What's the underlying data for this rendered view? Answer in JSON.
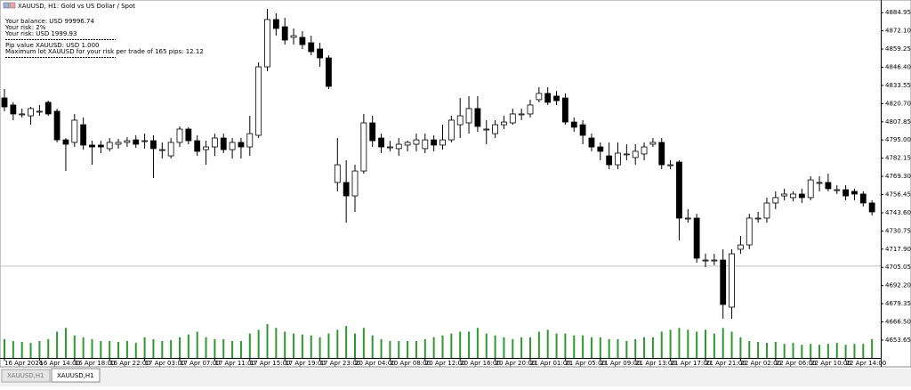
{
  "chart_data": {
    "type": "candlestick",
    "title": "XAUUSD, H1:  Gold vs US Dollar / Spot",
    "annotations": [
      "Your balance: USD 99996.74",
      "Your risk: 2%",
      "Your risk: USD 1999.93",
      "Pip value XAUUSD: USD 1.000",
      "Maximum lot XAUUSD for your risk per trade of 165 pips: 12.12"
    ],
    "categories": [
      "16 Apr 2026",
      null,
      null,
      null,
      "16 Apr 14:00",
      null,
      null,
      null,
      "16 Apr 18:00",
      null,
      null,
      null,
      "16 Apr 22:00",
      null,
      null,
      null,
      "17 Apr 03:00",
      null,
      null,
      null,
      "17 Apr 07:00",
      null,
      null,
      null,
      "17 Apr 11:00",
      null,
      null,
      null,
      "17 Apr 15:00",
      null,
      null,
      null,
      "17 Apr 19:00",
      null,
      null,
      null,
      "17 Apr 23:00",
      null,
      null,
      null,
      "20 Apr 04:00",
      null,
      null,
      null,
      "20 Apr 08:00",
      null,
      null,
      null,
      "20 Apr 12:00",
      null,
      null,
      null,
      "20 Apr 16:00",
      null,
      null,
      null,
      "20 Apr 20:00",
      null,
      null,
      null,
      "21 Apr 01:00",
      null,
      null,
      null,
      "21 Apr 05:00",
      null,
      null,
      null,
      "21 Apr 09:00",
      null,
      null,
      null,
      "21 Apr 13:00",
      null,
      null,
      null,
      "21 Apr 17:00",
      null,
      null,
      null,
      "21 Apr 21:00",
      null,
      null,
      null,
      "22 Apr 02:00",
      null,
      null,
      null,
      "22 Apr 06:00",
      null,
      null,
      null,
      "22 Apr 10:00",
      null,
      null,
      null,
      "22 Apr 14:00",
      null,
      null,
      null
    ],
    "open": [
      4824.7,
      4819.7,
      4813.4,
      4812.1,
      4815.3,
      4821.6,
      4815.3,
      4795.1,
      4793.3,
      4805.8,
      4791.4,
      4791.4,
      4788.9,
      4792.0,
      4793.3,
      4795.1,
      4794.5,
      4794.5,
      4788.2,
      4783.8,
      4793.3,
      4802.7,
      4794.5,
      4788.2,
      4790.1,
      4796.4,
      4788.2,
      4793.3,
      4790.1,
      4798.3,
      4846.7,
      4880.1,
      4875.0,
      4867.5,
      4867.5,
      4863.7,
      4859.3,
      4853.0,
      4765.0,
      4765.0,
      4755.5,
      4773.1,
      4807.1,
      4796.4,
      4790.1,
      4788.9,
      4791.4,
      4792.0,
      4788.9,
      4795.1,
      4791.4,
      4795.1,
      4805.8,
      4807.1,
      4817.2,
      4802.7,
      4799.5,
      4805.8,
      4807.1,
      4813.4,
      4813.4,
      4823.5,
      4827.9,
      4826.0,
      4824.7,
      4807.7,
      4805.8,
      4796.4,
      4790.1,
      4783.8,
      4777.5,
      4785.1,
      4782.6,
      4785.1,
      4792.0,
      4793.3,
      4777.5,
      4779.4,
      4739.8,
      4739.8,
      4710.2,
      4710.2,
      4710.2,
      4676.9,
      4717.8,
      4720.9,
      4739.8,
      4739.8,
      4750.5,
      4755.5,
      4754.3,
      4756.8,
      4754.3,
      4765.0,
      4765.0,
      4759.9,
      4759.9,
      4758.7,
      4756.8,
      4750.5
    ],
    "high": [
      4831.0,
      4821.6,
      4817.2,
      4818.4,
      4819.7,
      4822.8,
      4817.2,
      4796.4,
      4813.4,
      4810.9,
      4794.5,
      4794.5,
      4796.4,
      4795.8,
      4797.0,
      4798.3,
      4799.5,
      4798.3,
      4793.3,
      4796.4,
      4804.6,
      4804.0,
      4798.3,
      4794.5,
      4799.5,
      4799.5,
      4796.4,
      4796.4,
      4812.1,
      4849.9,
      4887.6,
      4884.5,
      4881.3,
      4873.8,
      4871.9,
      4868.7,
      4863.7,
      4854.9,
      4796.4,
      4780.7,
      4777.5,
      4813.4,
      4812.1,
      4799.5,
      4794.5,
      4796.4,
      4794.5,
      4799.5,
      4799.5,
      4798.3,
      4805.8,
      4812.1,
      4824.7,
      4826.0,
      4826.0,
      4809.0,
      4809.0,
      4812.1,
      4817.2,
      4817.2,
      4823.5,
      4832.3,
      4832.3,
      4829.7,
      4827.9,
      4810.9,
      4809.0,
      4799.5,
      4793.3,
      4793.3,
      4793.3,
      4792.0,
      4792.0,
      4793.3,
      4796.4,
      4796.4,
      4780.7,
      4780.7,
      4746.1,
      4742.9,
      4714.6,
      4714.6,
      4717.8,
      4717.8,
      4727.2,
      4742.9,
      4744.2,
      4754.3,
      4758.7,
      4760.6,
      4758.7,
      4760.6,
      4769.4,
      4769.4,
      4771.2,
      4763.1,
      4763.1,
      4760.6,
      4758.7,
      4752.4
    ],
    "low": [
      4815.3,
      4809.0,
      4810.9,
      4805.8,
      4812.1,
      4812.1,
      4793.3,
      4773.1,
      4790.1,
      4788.2,
      4777.5,
      4785.7,
      4787.0,
      4788.9,
      4790.1,
      4789.5,
      4788.9,
      4768.1,
      4781.9,
      4781.9,
      4790.1,
      4792.0,
      4783.8,
      4777.5,
      4783.8,
      4785.7,
      4781.9,
      4781.9,
      4783.8,
      4796.4,
      4843.6,
      4868.7,
      4862.4,
      4862.4,
      4859.3,
      4854.9,
      4846.7,
      4831.0,
      4758.7,
      4736.6,
      4744.2,
      4771.2,
      4790.1,
      4785.7,
      4787.0,
      4783.8,
      4787.0,
      4787.0,
      4785.7,
      4787.0,
      4788.2,
      4793.3,
      4796.4,
      4799.5,
      4800.8,
      4792.0,
      4796.4,
      4802.7,
      4805.8,
      4809.0,
      4810.9,
      4821.6,
      4819.7,
      4819.7,
      4805.8,
      4800.8,
      4792.0,
      4787.0,
      4780.7,
      4774.4,
      4774.4,
      4780.7,
      4777.5,
      4780.7,
      4790.1,
      4774.4,
      4774.4,
      4724.1,
      4736.6,
      4708.3,
      4705.2,
      4706.5,
      4668.7,
      4668.7,
      4714.6,
      4717.8,
      4736.6,
      4736.6,
      4746.1,
      4752.4,
      4751.7,
      4750.5,
      4752.4,
      4758.7,
      4758.7,
      4756.8,
      4752.4,
      4752.4,
      4748.0,
      4741.7
    ],
    "close": [
      4818.4,
      4813.4,
      4813.4,
      4817.2,
      4815.3,
      4813.4,
      4795.1,
      4792.0,
      4809.0,
      4791.4,
      4790.1,
      4790.1,
      4793.3,
      4793.3,
      4794.5,
      4792.0,
      4794.5,
      4788.9,
      4788.2,
      4793.3,
      4802.7,
      4794.5,
      4787.0,
      4790.1,
      4796.4,
      4788.2,
      4793.3,
      4790.1,
      4799.5,
      4846.7,
      4880.1,
      4873.8,
      4865.6,
      4868.7,
      4862.4,
      4857.4,
      4853.0,
      4832.9,
      4777.5,
      4755.5,
      4773.1,
      4807.1,
      4794.5,
      4790.1,
      4790.1,
      4792.0,
      4793.3,
      4795.1,
      4795.1,
      4791.4,
      4795.1,
      4809.0,
      4812.1,
      4817.2,
      4804.6,
      4802.7,
      4805.8,
      4807.7,
      4813.4,
      4813.4,
      4819.7,
      4827.9,
      4821.6,
      4822.8,
      4807.7,
      4804.0,
      4798.3,
      4790.1,
      4787.0,
      4777.5,
      4785.7,
      4785.1,
      4787.0,
      4790.1,
      4793.3,
      4777.5,
      4777.5,
      4739.8,
      4739.8,
      4711.5,
      4710.2,
      4710.2,
      4678.8,
      4714.6,
      4720.9,
      4739.8,
      4739.8,
      4750.5,
      4754.3,
      4756.8,
      4756.8,
      4754.3,
      4766.8,
      4765.0,
      4760.6,
      4759.9,
      4755.5,
      4756.8,
      4750.5,
      4744.2
    ],
    "volume": [
      20,
      18,
      17,
      16,
      18,
      20,
      28,
      32,
      24,
      22,
      20,
      18,
      18,
      17,
      18,
      16,
      22,
      20,
      18,
      19,
      22,
      25,
      28,
      22,
      20,
      20,
      18,
      18,
      26,
      30,
      36,
      32,
      28,
      26,
      25,
      24,
      22,
      26,
      30,
      34,
      26,
      32,
      24,
      20,
      18,
      18,
      18,
      18,
      20,
      22,
      24,
      26,
      28,
      28,
      32,
      26,
      24,
      22,
      20,
      22,
      22,
      28,
      30,
      26,
      26,
      24,
      24,
      22,
      22,
      20,
      20,
      18,
      20,
      22,
      22,
      28,
      30,
      32,
      30,
      28,
      30,
      26,
      32,
      28,
      22,
      18,
      17,
      16,
      17,
      15,
      16,
      14,
      15,
      14,
      15,
      16,
      14,
      15,
      15,
      20
    ],
    "price_line": 4705.9,
    "ylim": [
      4636.0,
      4893.9
    ],
    "yticks": [
      4884.95,
      {
        "value": 4872.1,
        "label": "4872.10"
      },
      4859.25,
      {
        "value": 4846.4,
        "label": "4846.40"
      },
      4833.55,
      {
        "value": 4820.7,
        "label": "4820.70"
      },
      4807.85,
      {
        "value": 4795,
        "label": "4795.00"
      },
      4782.15,
      {
        "value": 4769.3,
        "label": "4769.30"
      },
      4756.45,
      {
        "value": 4743.6,
        "label": "4743.60"
      },
      4730.75,
      {
        "value": 4717.9,
        "label": "4717.90"
      },
      4705.05,
      {
        "value": 4692.2,
        "label": "4692.20"
      },
      4679.35,
      {
        "value": 4666.5,
        "label": "4666.50"
      },
      4653.65
    ],
    "bull_color": "#ffffff",
    "bear_color": "#000000",
    "volume_color": "#2e9a2e"
  },
  "tabs": [
    "XAUUSD,H1",
    "XAUUSD,H1"
  ]
}
